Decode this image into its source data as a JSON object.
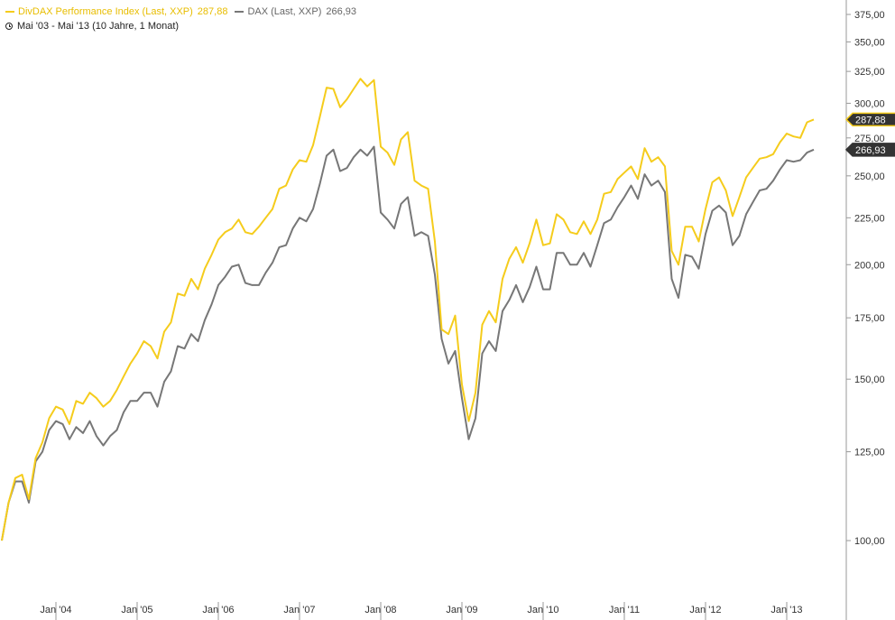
{
  "colors": {
    "divdax": "#f5cc1c",
    "dax": "#777777",
    "flag_divdax_bg": "#333333",
    "flag_divdax_border": "#f5cc1c",
    "flag_dax_bg": "#333333",
    "axis": "#999999"
  },
  "legend": {
    "series1_label": "DivDAX Performance Index (Last, XXP)",
    "series1_value": "287,88",
    "series2_label": "DAX (Last, XXP)",
    "series2_value": "266,93",
    "period": "Mai '03 - Mai '13 (10 Jahre, 1 Monat)"
  },
  "chart_data": {
    "type": "line",
    "title": "",
    "xlabel": "",
    "ylabel": "",
    "y_scale": "log",
    "ylim": [
      85,
      378
    ],
    "y_ticks": [
      100,
      125,
      150,
      175,
      200,
      225,
      250,
      275,
      300,
      325,
      350,
      375
    ],
    "y_tick_labels": [
      "100,00",
      "125,00",
      "150,00",
      "175,00",
      "200,00",
      "225,00",
      "250,00",
      "275,00",
      "300,00",
      "325,00",
      "350,00",
      "375,00"
    ],
    "x_ticks": [
      "2004-01",
      "2005-01",
      "2006-01",
      "2007-01",
      "2008-01",
      "2009-01",
      "2010-01",
      "2011-01",
      "2012-01",
      "2013-01"
    ],
    "x_tick_labels": [
      "Jan '04",
      "Jan '05",
      "Jan '06",
      "Jan '07",
      "Jan '08",
      "Jan '09",
      "Jan '10",
      "Jan '11",
      "Jan '12",
      "Jan '13"
    ],
    "x_range": [
      "2003-05",
      "2013-06"
    ],
    "grid": false,
    "legend_position": "top-left",
    "last_value_labels": [
      "287,88",
      "266,93"
    ],
    "series": [
      {
        "name": "DivDAX Performance Index (Last, XXP)",
        "start": "2003-05",
        "values": [
          100,
          110,
          117,
          118,
          111,
          123,
          128,
          136,
          140,
          139,
          134,
          142,
          141,
          145,
          143,
          140,
          142,
          146,
          151,
          156,
          160,
          165,
          163,
          158,
          169,
          173,
          186,
          185,
          193,
          188,
          198,
          205,
          213,
          217,
          219,
          224,
          217,
          216,
          220,
          225,
          230,
          242,
          244,
          254,
          260,
          259,
          270,
          290,
          312,
          311,
          297,
          303,
          311,
          319,
          313,
          318,
          269,
          265,
          257,
          274,
          279,
          247,
          244,
          242,
          212,
          170,
          168,
          176,
          148,
          135,
          145,
          172,
          178,
          173,
          193,
          203,
          209,
          201,
          211,
          224,
          210,
          211,
          227,
          224,
          217,
          216,
          223,
          216,
          224,
          239,
          240,
          248,
          252,
          256,
          248,
          268,
          259,
          262,
          256,
          207,
          200,
          220,
          220,
          212,
          230,
          246,
          249,
          241,
          226,
          237,
          249,
          255,
          261,
          262,
          264,
          272,
          278,
          276,
          275,
          286,
          288
        ]
      },
      {
        "name": "DAX (Last, XXP)",
        "start": "2003-05",
        "values": [
          100,
          110,
          116,
          116,
          110,
          122,
          125,
          132,
          135,
          134,
          129,
          133,
          131,
          135,
          130,
          127,
          130,
          132,
          138,
          142,
          142,
          145,
          145,
          140,
          149,
          153,
          163,
          162,
          168,
          165,
          174,
          181,
          190,
          194,
          199,
          200,
          191,
          190,
          190,
          196,
          201,
          209,
          210,
          219,
          225,
          223,
          230,
          245,
          263,
          267,
          253,
          255,
          262,
          267,
          263,
          269,
          228,
          224,
          219,
          233,
          237,
          215,
          217,
          215,
          195,
          166,
          156,
          161,
          143,
          129,
          136,
          160,
          165,
          161,
          178,
          183,
          190,
          182,
          189,
          199,
          188,
          188,
          206,
          206,
          200,
          200,
          206,
          199,
          210,
          222,
          224,
          231,
          237,
          244,
          236,
          251,
          244,
          247,
          240,
          193,
          184,
          205,
          204,
          198,
          216,
          229,
          232,
          228,
          210,
          215,
          227,
          234,
          241,
          242,
          247,
          254,
          260,
          259,
          260,
          265,
          267
        ]
      }
    ]
  }
}
